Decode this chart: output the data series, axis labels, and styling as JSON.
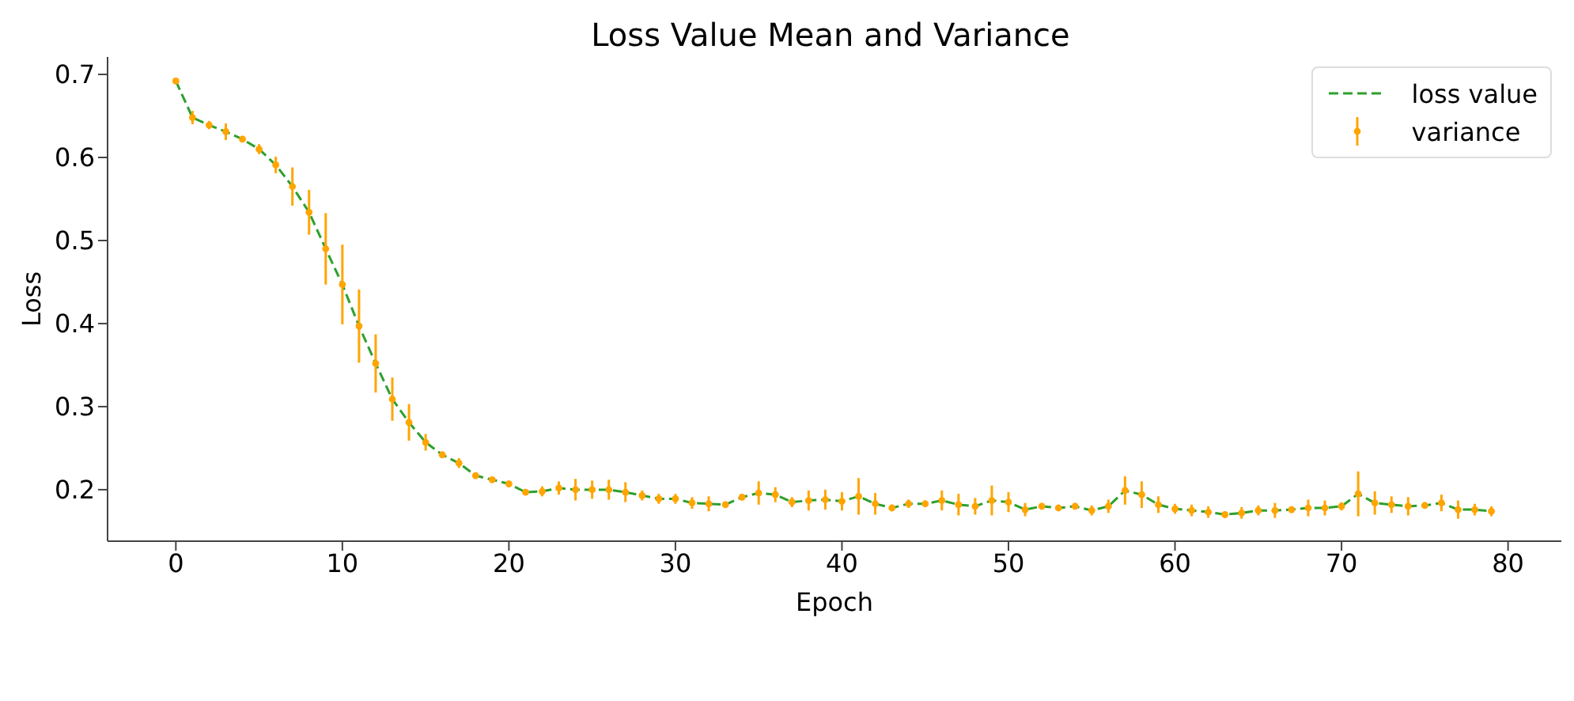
{
  "chart_data": {
    "type": "line",
    "title": "Loss Value Mean and Variance",
    "xlabel": "Epoch",
    "ylabel": "Loss",
    "x": [
      0,
      1,
      2,
      3,
      4,
      5,
      6,
      7,
      8,
      9,
      10,
      11,
      12,
      13,
      14,
      15,
      16,
      17,
      18,
      19,
      20,
      21,
      22,
      23,
      24,
      25,
      26,
      27,
      28,
      29,
      30,
      31,
      32,
      33,
      34,
      35,
      36,
      37,
      38,
      39,
      40,
      41,
      42,
      43,
      44,
      45,
      46,
      47,
      48,
      49,
      50,
      51,
      52,
      53,
      54,
      55,
      56,
      57,
      58,
      59,
      60,
      61,
      62,
      63,
      64,
      65,
      66,
      67,
      68,
      69,
      70,
      71,
      72,
      73,
      74,
      75,
      76,
      77,
      78,
      79
    ],
    "series": [
      {
        "name": "loss value",
        "type": "line",
        "color": "#2ca02c",
        "line_style": "dashed",
        "marker": "none",
        "values": [
          0.692,
          0.648,
          0.639,
          0.631,
          0.622,
          0.61,
          0.591,
          0.565,
          0.534,
          0.49,
          0.447,
          0.397,
          0.352,
          0.309,
          0.281,
          0.257,
          0.242,
          0.232,
          0.217,
          0.212,
          0.207,
          0.197,
          0.198,
          0.202,
          0.2,
          0.2,
          0.2,
          0.197,
          0.193,
          0.189,
          0.189,
          0.184,
          0.183,
          0.182,
          0.191,
          0.196,
          0.194,
          0.185,
          0.187,
          0.188,
          0.186,
          0.192,
          0.183,
          0.178,
          0.183,
          0.183,
          0.187,
          0.182,
          0.18,
          0.187,
          0.185,
          0.176,
          0.18,
          0.178,
          0.18,
          0.175,
          0.18,
          0.199,
          0.194,
          0.182,
          0.177,
          0.175,
          0.173,
          0.17,
          0.172,
          0.175,
          0.175,
          0.176,
          0.178,
          0.178,
          0.18,
          0.195,
          0.184,
          0.182,
          0.18,
          0.181,
          0.184,
          0.176,
          0.176,
          0.174
        ]
      },
      {
        "name": "variance",
        "type": "scatter",
        "color": "#ffa500",
        "marker": "circle",
        "values": [
          0.692,
          0.648,
          0.639,
          0.631,
          0.622,
          0.61,
          0.591,
          0.565,
          0.534,
          0.49,
          0.447,
          0.397,
          0.352,
          0.309,
          0.281,
          0.257,
          0.242,
          0.232,
          0.217,
          0.212,
          0.207,
          0.197,
          0.198,
          0.202,
          0.2,
          0.2,
          0.2,
          0.197,
          0.193,
          0.189,
          0.189,
          0.184,
          0.183,
          0.182,
          0.191,
          0.196,
          0.194,
          0.185,
          0.187,
          0.188,
          0.186,
          0.192,
          0.183,
          0.178,
          0.183,
          0.183,
          0.187,
          0.182,
          0.18,
          0.187,
          0.185,
          0.176,
          0.18,
          0.178,
          0.18,
          0.175,
          0.18,
          0.199,
          0.194,
          0.182,
          0.177,
          0.175,
          0.173,
          0.17,
          0.172,
          0.175,
          0.175,
          0.176,
          0.178,
          0.178,
          0.18,
          0.195,
          0.184,
          0.182,
          0.18,
          0.181,
          0.184,
          0.176,
          0.176,
          0.174
        ],
        "errors": [
          0.002,
          0.008,
          0.005,
          0.01,
          0.004,
          0.006,
          0.01,
          0.023,
          0.027,
          0.043,
          0.048,
          0.044,
          0.035,
          0.026,
          0.022,
          0.01,
          0.004,
          0.006,
          0.004,
          0.003,
          0.004,
          0.003,
          0.006,
          0.008,
          0.013,
          0.011,
          0.012,
          0.012,
          0.006,
          0.006,
          0.006,
          0.007,
          0.009,
          0.004,
          0.004,
          0.014,
          0.009,
          0.006,
          0.012,
          0.012,
          0.011,
          0.022,
          0.013,
          0.004,
          0.005,
          0.003,
          0.012,
          0.013,
          0.01,
          0.018,
          0.012,
          0.008,
          0.004,
          0.003,
          0.004,
          0.006,
          0.008,
          0.017,
          0.016,
          0.01,
          0.006,
          0.007,
          0.007,
          0.004,
          0.007,
          0.006,
          0.009,
          0.004,
          0.01,
          0.009,
          0.005,
          0.027,
          0.014,
          0.01,
          0.011,
          0.004,
          0.01,
          0.011,
          0.007,
          0.006
        ]
      }
    ],
    "xlim": [
      -4.1,
      83.2
    ],
    "xticks": [
      0,
      10,
      20,
      30,
      40,
      50,
      60,
      70,
      80
    ],
    "ylim": [
      0.138,
      0.721
    ],
    "yticks": [
      0.2,
      0.3,
      0.4,
      0.5,
      0.6,
      0.7
    ],
    "grid": false,
    "legend": "top right"
  }
}
